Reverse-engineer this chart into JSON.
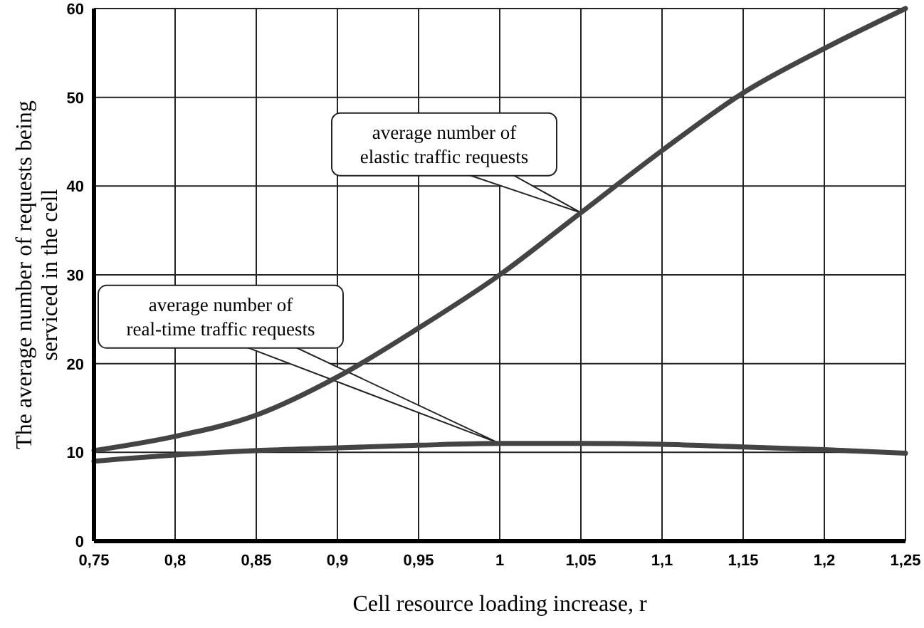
{
  "chart_data": {
    "type": "line",
    "xlabel": "Cell resource loading increase, r",
    "ylabel": "The average number of requests being serviced in the cell",
    "x": [
      0.75,
      0.8,
      0.85,
      0.9,
      0.95,
      1,
      1.05,
      1.1,
      1.15,
      1.2,
      1.25
    ],
    "series": [
      {
        "color": "#444444",
        "values": [
          10.2,
          11.8,
          14.2,
          18.5,
          24,
          30,
          37,
          44,
          50.5,
          55.5,
          60
        ]
      },
      {
        "color": "#444444",
        "values": [
          9,
          9.7,
          10.2,
          10.5,
          10.8,
          11,
          11,
          10.9,
          10.6,
          10.3,
          9.9
        ]
      }
    ],
    "xlim": [
      0.75,
      1.25
    ],
    "xticks": [
      {
        "value": 0.75,
        "label": "0,75"
      },
      {
        "value": 0.8,
        "label": "0,8"
      },
      {
        "value": 0.85,
        "label": "0,85"
      },
      {
        "value": 0.9,
        "label": "0,9"
      },
      {
        "value": 0.95,
        "label": "0,95"
      },
      1,
      {
        "value": 1.05,
        "label": "1,05"
      },
      {
        "value": 1.1,
        "label": "1,1"
      },
      {
        "value": 1.15,
        "label": "1,15"
      },
      {
        "value": 1.2,
        "label": "1,2"
      },
      {
        "value": 1.25,
        "label": "1,25"
      }
    ],
    "ylim": [
      0,
      60
    ],
    "yticks": [
      0,
      10,
      20,
      30,
      40,
      50,
      60
    ],
    "grid": true,
    "marker": "none",
    "line_style": "solid",
    "annotations": [
      {
        "text": "average number of elastic traffic requests",
        "x": 1.05,
        "y": 37
      },
      {
        "text": "average number of real-time traffic requests",
        "x": 1,
        "y": 11
      }
    ]
  }
}
